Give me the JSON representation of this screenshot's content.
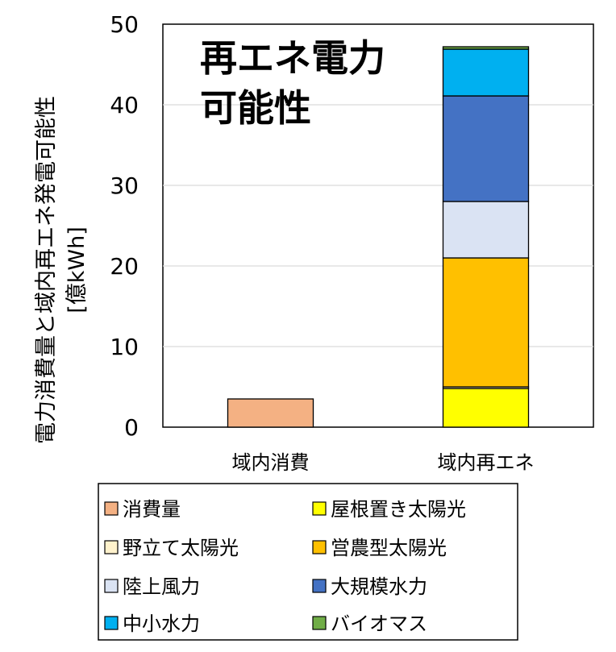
{
  "chart_data": {
    "type": "bar",
    "stacked": true,
    "title": [
      "再エネ電力",
      "可能性"
    ],
    "ylabel": [
      "電力消費量と域内再エネ発電可能性",
      "[億kWh]"
    ],
    "xlabel": "",
    "ylim": [
      0,
      50
    ],
    "yticks": [
      0,
      10,
      20,
      30,
      40,
      50
    ],
    "grid": true,
    "legend_position": "bottom",
    "categories": [
      "域内消費",
      "域内再エネ"
    ],
    "series": [
      {
        "name": "消費量",
        "color": "#F4B183",
        "values": [
          3.5,
          0
        ]
      },
      {
        "name": "屋根置き太陽光",
        "color": "#FFFF00",
        "values": [
          0,
          4.8
        ]
      },
      {
        "name": "野立て太陽光",
        "color": "#FFF2CC",
        "values": [
          0,
          0.2
        ]
      },
      {
        "name": "営農型太陽光",
        "color": "#FFC000",
        "values": [
          0,
          16.0
        ]
      },
      {
        "name": "陸上風力",
        "color": "#DAE3F3",
        "values": [
          0,
          7.0
        ]
      },
      {
        "name": "大規模水力",
        "color": "#4472C4",
        "values": [
          0,
          13.1
        ]
      },
      {
        "name": "中小水力",
        "color": "#00B0F0",
        "values": [
          0,
          5.8
        ]
      },
      {
        "name": "バイオマス",
        "color": "#70AD47",
        "values": [
          0,
          0.3
        ]
      }
    ]
  }
}
